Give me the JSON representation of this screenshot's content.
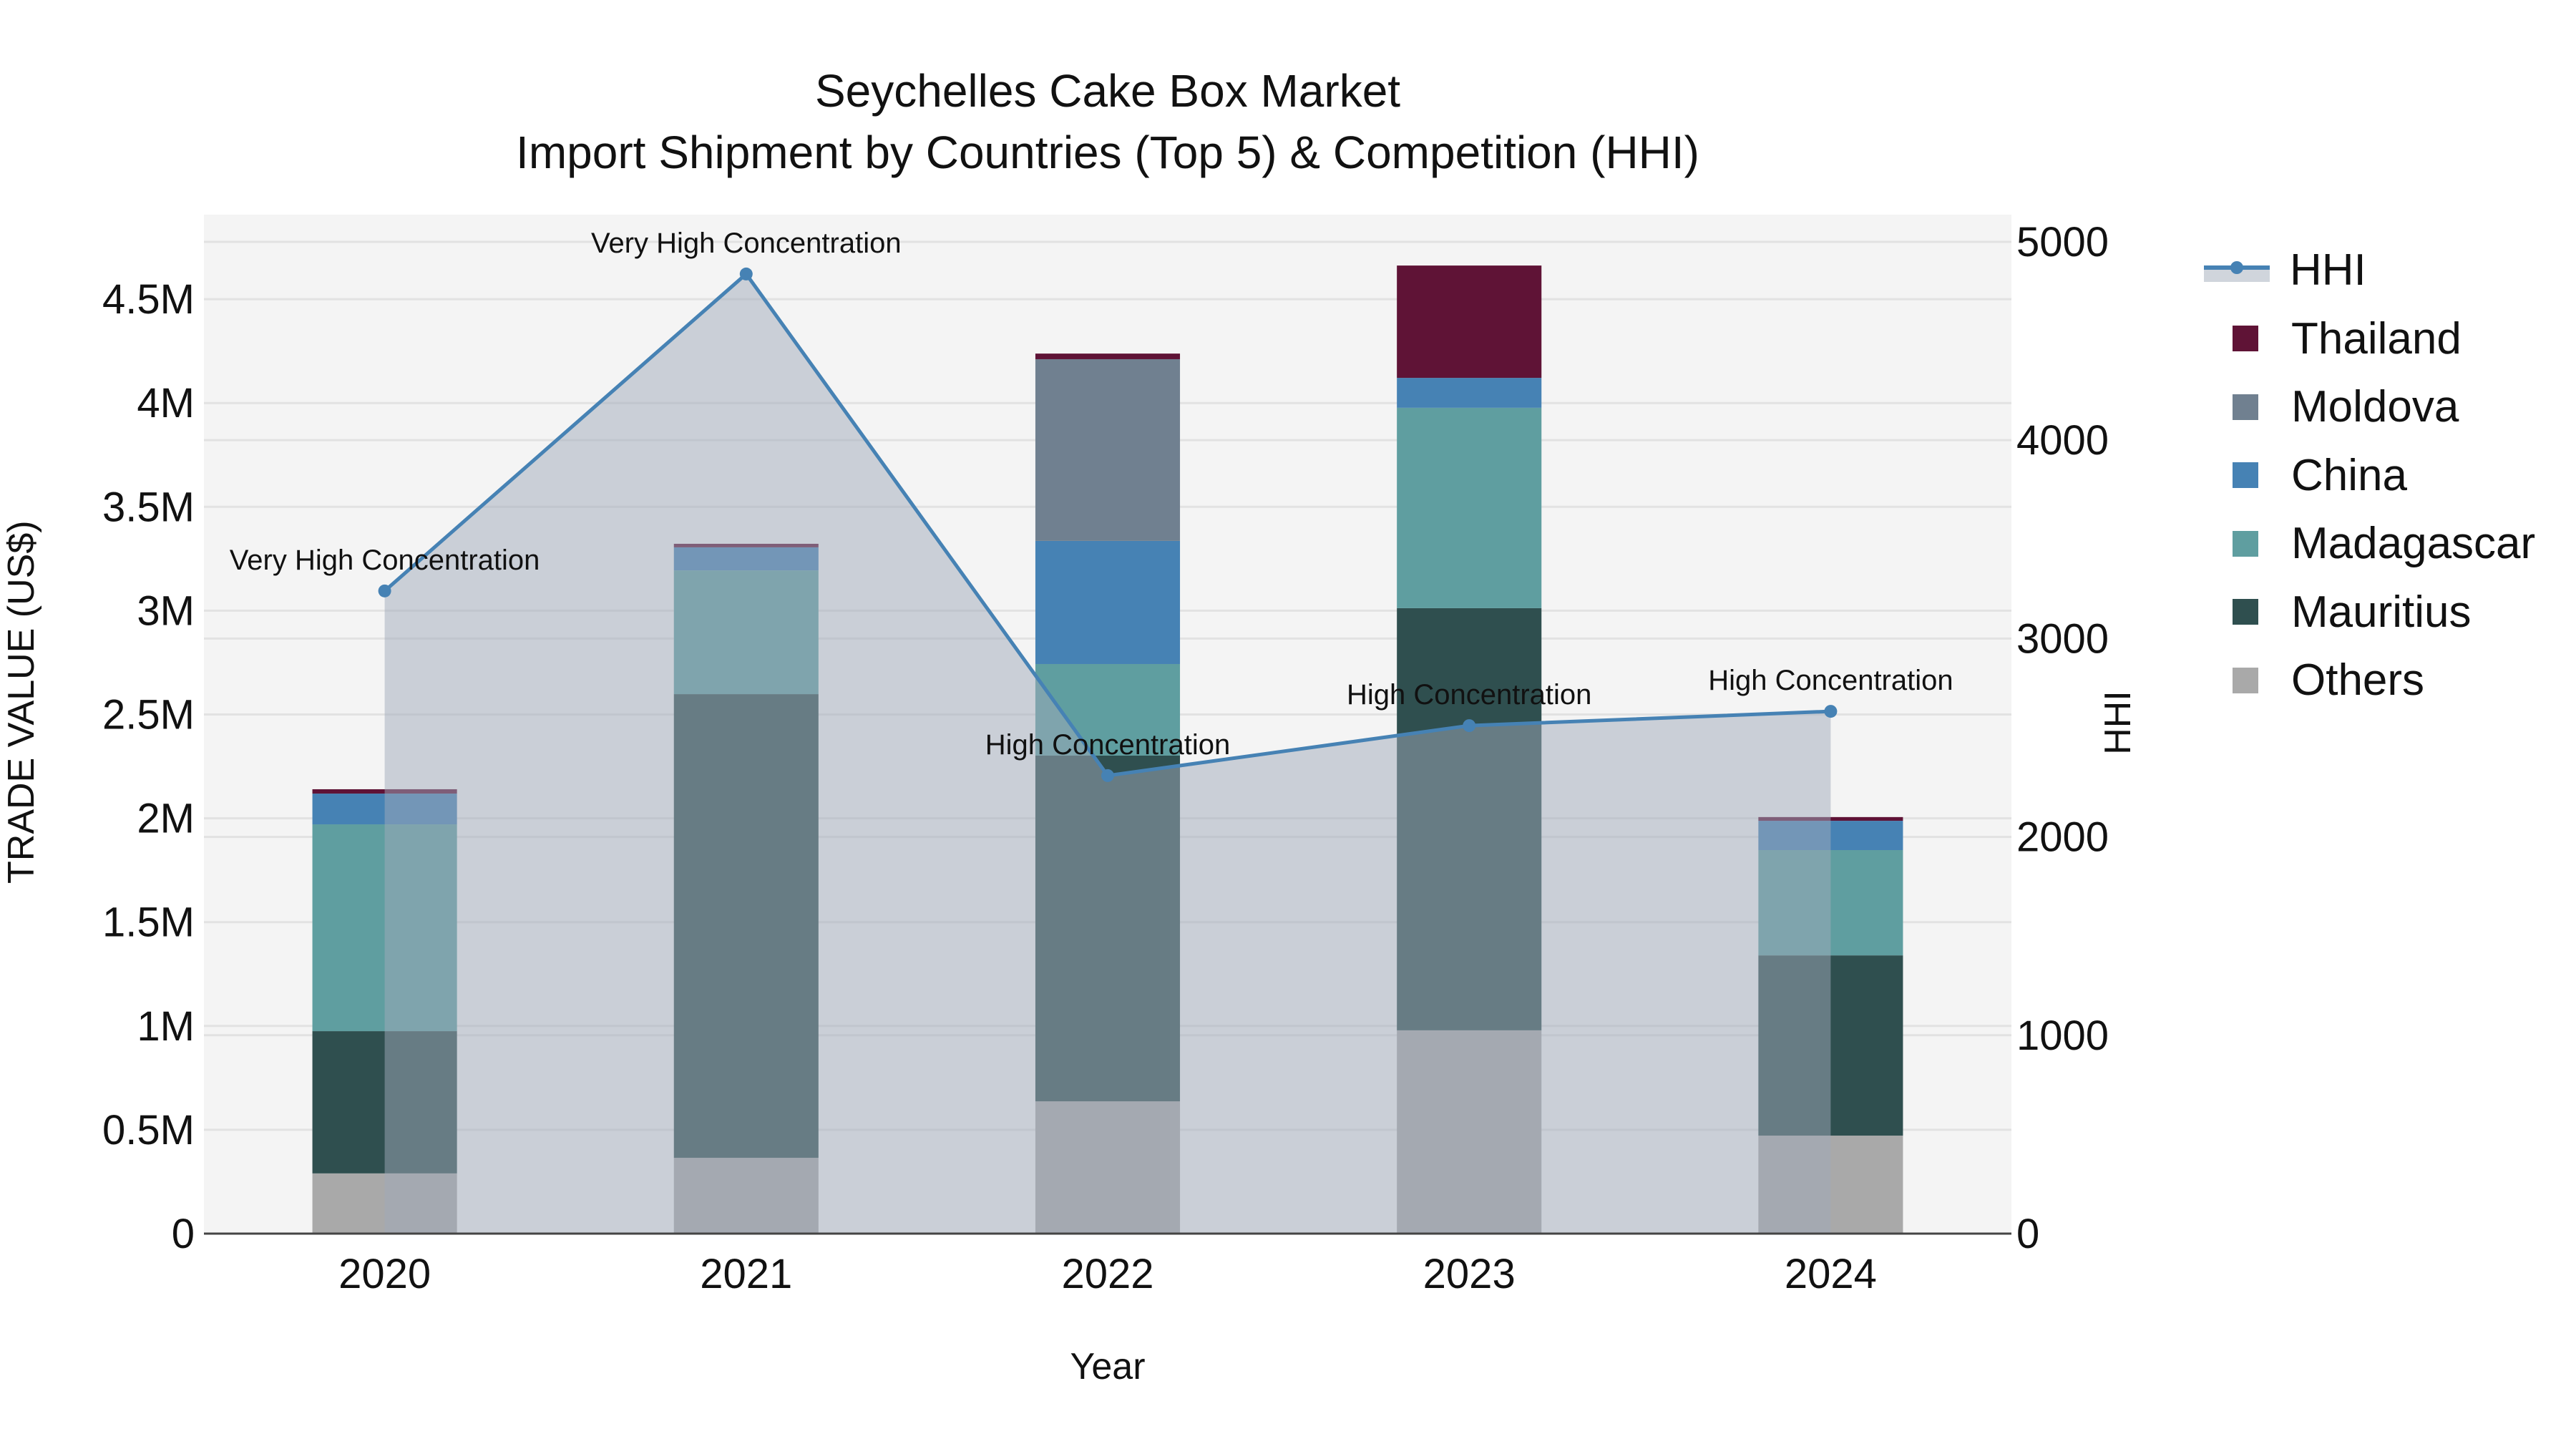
{
  "title": {
    "line1": "Seychelles Cake Box Market",
    "line2": "Import Shipment by Countries (Top 5) & Competition (HHI)"
  },
  "axes": {
    "x_title": "Year",
    "y_left_title": "TRADE VALUE (US$)",
    "y_right_title": "HHI",
    "y_left_ticks": [
      "0",
      "0.5M",
      "1M",
      "1.5M",
      "2M",
      "2.5M",
      "3M",
      "3.5M",
      "4M",
      "4.5M"
    ],
    "y_right_ticks": [
      "0",
      "1000",
      "2000",
      "3000",
      "4000",
      "5000"
    ],
    "x_ticks": [
      "2020",
      "2021",
      "2022",
      "2023",
      "2024"
    ]
  },
  "legend": {
    "items": [
      {
        "label": "HHI",
        "type": "line",
        "color": "#4682b4"
      },
      {
        "label": "Thailand",
        "type": "bar",
        "color": "#5f1336"
      },
      {
        "label": "Moldova",
        "type": "bar",
        "color": "#708090"
      },
      {
        "label": "China",
        "type": "bar",
        "color": "#4682b4"
      },
      {
        "label": "Madagascar",
        "type": "bar",
        "color": "#5f9ea0"
      },
      {
        "label": "Mauritius",
        "type": "bar",
        "color": "#2f4f4f"
      },
      {
        "label": "Others",
        "type": "bar",
        "color": "#a9a9a9"
      }
    ]
  },
  "chart_data": {
    "type": "bar",
    "subtype": "stacked bar + line (dual axis)",
    "title": "Seychelles Cake Box Market — Import Shipment by Countries (Top 5) & Competition (HHI)",
    "xlabel": "Year",
    "ylabel": "TRADE VALUE (US$)",
    "y2label": "HHI",
    "categories": [
      "2020",
      "2021",
      "2022",
      "2023",
      "2024"
    ],
    "ylim": [
      0,
      4907000
    ],
    "y2lim": [
      0,
      5137
    ],
    "grid": true,
    "legend_position": "right",
    "series": [
      {
        "name": "Others",
        "axis": "left",
        "color": "#a9a9a9",
        "values": [
          290000,
          365000,
          637000,
          979000,
          472000
        ]
      },
      {
        "name": "Mauritius",
        "axis": "left",
        "color": "#2f4f4f",
        "values": [
          685000,
          2233000,
          1665000,
          2033000,
          868000
        ]
      },
      {
        "name": "Madagascar",
        "axis": "left",
        "color": "#5f9ea0",
        "values": [
          996000,
          596000,
          441000,
          965000,
          507000
        ]
      },
      {
        "name": "China",
        "axis": "left",
        "color": "#4682b4",
        "values": [
          148000,
          111000,
          593000,
          144000,
          141000
        ]
      },
      {
        "name": "Moldova",
        "axis": "left",
        "color": "#708090",
        "values": [
          0,
          0,
          875000,
          0,
          0
        ]
      },
      {
        "name": "Thailand",
        "axis": "left",
        "color": "#5f1336",
        "values": [
          21000,
          17000,
          27000,
          541000,
          18000
        ]
      },
      {
        "name": "HHI",
        "axis": "right",
        "type": "line",
        "color": "#4682b4",
        "values": [
          3240,
          4838,
          2309,
          2561,
          2633
        ]
      }
    ],
    "annotations": [
      {
        "x": "2020",
        "text": "Very High Concentration"
      },
      {
        "x": "2021",
        "text": "Very High Concentration"
      },
      {
        "x": "2022",
        "text": "High Concentration"
      },
      {
        "x": "2023",
        "text": "High Concentration"
      },
      {
        "x": "2024",
        "text": "High Concentration"
      }
    ]
  }
}
